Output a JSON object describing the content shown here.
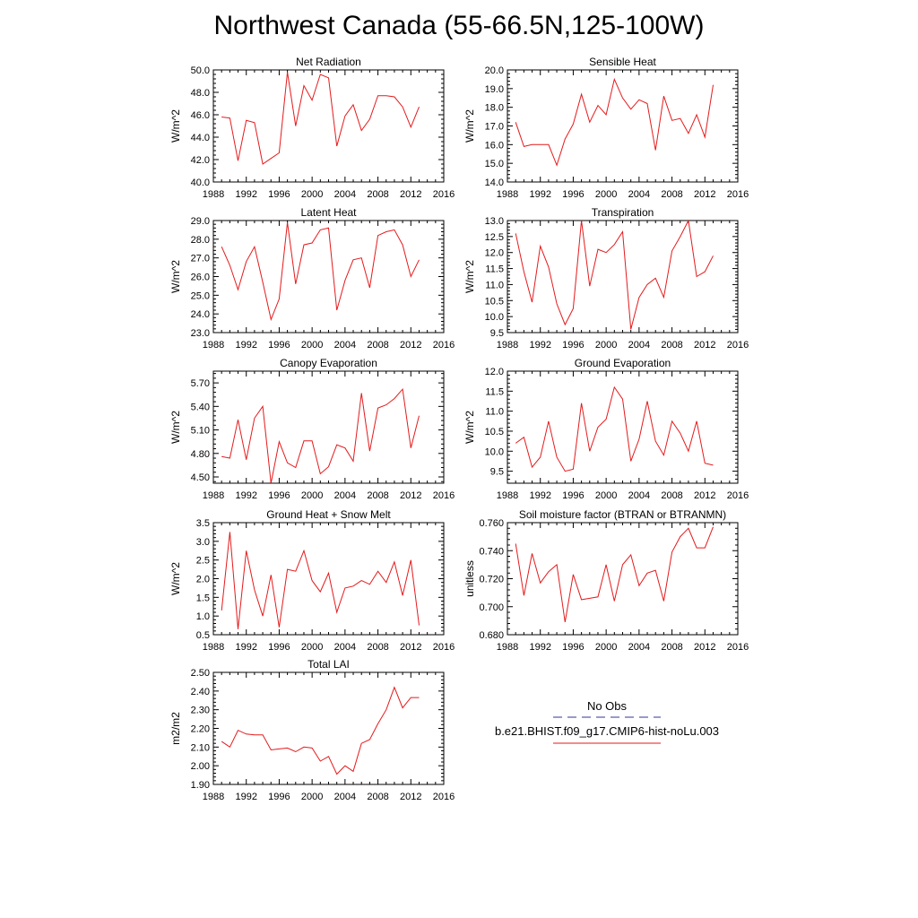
{
  "title": "Northwest Canada (55-66.5N,125-100W)",
  "legend": {
    "entries": [
      {
        "label": "No Obs",
        "color": "#333399",
        "dash": true
      },
      {
        "label": "b.e21.BHIST.f09_g17.CMIP6-hist-noLu.003",
        "color": "#e41a1c",
        "dash": false
      }
    ]
  },
  "chart_data": [
    {
      "type": "line",
      "title": "Net Radiation",
      "ylabel": "W/m^2",
      "xlim": [
        1988,
        2016
      ],
      "ylim": [
        40,
        50
      ],
      "xticks": [
        1988,
        1992,
        1996,
        2000,
        2004,
        2008,
        2012,
        2016
      ],
      "yticks": [
        40,
        42,
        44,
        46,
        48,
        50
      ],
      "ytick_labels": [
        "40.0",
        "42.0",
        "44.0",
        "46.0",
        "48.0",
        "50.0"
      ],
      "xtick_labels": [
        "1988",
        "1992",
        "1996",
        "2000",
        "2004",
        "2008",
        "2012",
        "2016"
      ],
      "x": [
        1989,
        1990,
        1991,
        1992,
        1993,
        1994,
        1995,
        1996,
        1997,
        1998,
        1999,
        2000,
        2001,
        2002,
        2003,
        2004,
        2005,
        2006,
        2007,
        2008,
        2009,
        2010,
        2011,
        2012,
        2013
      ],
      "series": [
        {
          "color": "#e41a1c",
          "values": [
            45.8,
            45.7,
            41.9,
            45.5,
            45.3,
            41.6,
            42.1,
            42.6,
            49.8,
            45.0,
            48.6,
            47.3,
            49.6,
            49.3,
            43.2,
            45.9,
            46.9,
            44.6,
            45.6,
            47.7,
            47.7,
            47.6,
            46.7,
            44.9,
            46.7
          ]
        }
      ]
    },
    {
      "type": "line",
      "title": "Sensible Heat",
      "ylabel": "W/m^2",
      "xlim": [
        1988,
        2016
      ],
      "ylim": [
        14,
        20
      ],
      "xticks": [
        1988,
        1992,
        1996,
        2000,
        2004,
        2008,
        2012,
        2016
      ],
      "yticks": [
        14,
        15,
        16,
        17,
        18,
        19,
        20
      ],
      "ytick_labels": [
        "14.0",
        "15.0",
        "16.0",
        "17.0",
        "18.0",
        "19.0",
        "20.0"
      ],
      "xtick_labels": [
        "1988",
        "1992",
        "1996",
        "2000",
        "2004",
        "2008",
        "2012",
        "2016"
      ],
      "x": [
        1989,
        1990,
        1991,
        1992,
        1993,
        1994,
        1995,
        1996,
        1997,
        1998,
        1999,
        2000,
        2001,
        2002,
        2003,
        2004,
        2005,
        2006,
        2007,
        2008,
        2009,
        2010,
        2011,
        2012,
        2013
      ],
      "series": [
        {
          "color": "#e41a1c",
          "values": [
            17.2,
            15.9,
            16.0,
            16.0,
            16.0,
            14.9,
            16.3,
            17.1,
            18.7,
            17.2,
            18.1,
            17.6,
            19.5,
            18.5,
            17.9,
            18.4,
            18.2,
            15.7,
            18.6,
            17.3,
            17.4,
            16.6,
            17.6,
            16.4,
            19.2
          ]
        }
      ]
    },
    {
      "type": "line",
      "title": "Latent Heat",
      "ylabel": "W/m^2",
      "xlim": [
        1988,
        2016
      ],
      "ylim": [
        23,
        29
      ],
      "xticks": [
        1988,
        1992,
        1996,
        2000,
        2004,
        2008,
        2012,
        2016
      ],
      "yticks": [
        23,
        24,
        25,
        26,
        27,
        28,
        29
      ],
      "ytick_labels": [
        "23.0",
        "24.0",
        "25.0",
        "26.0",
        "27.0",
        "28.0",
        "29.0"
      ],
      "xtick_labels": [
        "1988",
        "1992",
        "1996",
        "2000",
        "2004",
        "2008",
        "2012",
        "2016"
      ],
      "x": [
        1989,
        1990,
        1991,
        1992,
        1993,
        1994,
        1995,
        1996,
        1997,
        1998,
        1999,
        2000,
        2001,
        2002,
        2003,
        2004,
        2005,
        2006,
        2007,
        2008,
        2009,
        2010,
        2011,
        2012,
        2013
      ],
      "series": [
        {
          "color": "#e41a1c",
          "values": [
            27.6,
            26.6,
            25.3,
            26.8,
            27.6,
            25.7,
            23.7,
            24.8,
            28.9,
            25.6,
            27.7,
            27.8,
            28.5,
            28.6,
            24.2,
            25.8,
            26.9,
            27.0,
            25.4,
            28.2,
            28.4,
            28.5,
            27.7,
            26.0,
            26.9
          ]
        }
      ]
    },
    {
      "type": "line",
      "title": "Transpiration",
      "ylabel": "W/m^2",
      "xlim": [
        1988,
        2016
      ],
      "ylim": [
        9.5,
        13
      ],
      "xticks": [
        1988,
        1992,
        1996,
        2000,
        2004,
        2008,
        2012,
        2016
      ],
      "yticks": [
        9.5,
        10,
        10.5,
        11,
        11.5,
        12,
        12.5,
        13
      ],
      "ytick_labels": [
        "9.5",
        "10.0",
        "10.5",
        "11.0",
        "11.5",
        "12.0",
        "12.5",
        "13.0"
      ],
      "xtick_labels": [
        "1988",
        "1992",
        "1996",
        "2000",
        "2004",
        "2008",
        "2012",
        "2016"
      ],
      "x": [
        1989,
        1990,
        1991,
        1992,
        1993,
        1994,
        1995,
        1996,
        1997,
        1998,
        1999,
        2000,
        2001,
        2002,
        2003,
        2004,
        2005,
        2006,
        2007,
        2008,
        2009,
        2010,
        2011,
        2012,
        2013
      ],
      "series": [
        {
          "color": "#e41a1c",
          "values": [
            12.6,
            11.4,
            10.45,
            12.2,
            11.55,
            10.4,
            9.75,
            10.25,
            13.0,
            10.95,
            12.1,
            12.0,
            12.25,
            12.65,
            9.6,
            10.6,
            11.0,
            11.2,
            10.6,
            12.05,
            12.5,
            13.0,
            11.25,
            11.4,
            11.9
          ]
        }
      ]
    },
    {
      "type": "line",
      "title": "Canopy Evaporation",
      "ylabel": "W/m^2",
      "xlim": [
        1988,
        2016
      ],
      "ylim": [
        4.42,
        5.85
      ],
      "xticks": [
        1988,
        1992,
        1996,
        2000,
        2004,
        2008,
        2012,
        2016
      ],
      "yticks": [
        4.5,
        4.8,
        5.1,
        5.4,
        5.7
      ],
      "ytick_labels": [
        "4.50",
        "4.80",
        "5.10",
        "5.40",
        "5.70"
      ],
      "xtick_labels": [
        "1988",
        "1992",
        "1996",
        "2000",
        "2004",
        "2008",
        "2012",
        "2016"
      ],
      "x": [
        1989,
        1990,
        1991,
        1992,
        1993,
        1994,
        1995,
        1996,
        1997,
        1998,
        1999,
        2000,
        2001,
        2002,
        2003,
        2004,
        2005,
        2006,
        2007,
        2008,
        2009,
        2010,
        2011,
        2012,
        2013
      ],
      "series": [
        {
          "color": "#e41a1c",
          "values": [
            4.76,
            4.74,
            5.23,
            4.72,
            5.25,
            5.4,
            4.42,
            4.95,
            4.68,
            4.62,
            4.96,
            4.96,
            4.54,
            4.63,
            4.91,
            4.87,
            4.7,
            5.57,
            4.83,
            5.38,
            5.42,
            5.5,
            5.62,
            4.87,
            5.28
          ]
        }
      ]
    },
    {
      "type": "line",
      "title": "Ground Evaporation",
      "ylabel": "W/m^2",
      "xlim": [
        1988,
        2016
      ],
      "ylim": [
        9.2,
        12
      ],
      "xticks": [
        1988,
        1992,
        1996,
        2000,
        2004,
        2008,
        2012,
        2016
      ],
      "yticks": [
        9.5,
        10,
        10.5,
        11,
        11.5,
        12
      ],
      "ytick_labels": [
        "9.5",
        "10.0",
        "10.5",
        "11.0",
        "11.5",
        "12.0"
      ],
      "xtick_labels": [
        "1988",
        "1992",
        "1996",
        "2000",
        "2004",
        "2008",
        "2012",
        "2016"
      ],
      "x": [
        1989,
        1990,
        1991,
        1992,
        1993,
        1994,
        1995,
        1996,
        1997,
        1998,
        1999,
        2000,
        2001,
        2002,
        2003,
        2004,
        2005,
        2006,
        2007,
        2008,
        2009,
        2010,
        2011,
        2012,
        2013
      ],
      "series": [
        {
          "color": "#e41a1c",
          "values": [
            10.2,
            10.35,
            9.6,
            9.85,
            10.75,
            9.85,
            9.5,
            9.55,
            11.2,
            10.0,
            10.6,
            10.8,
            11.6,
            11.3,
            9.75,
            10.3,
            11.25,
            10.25,
            9.9,
            10.75,
            10.45,
            10.0,
            10.75,
            9.7,
            9.65
          ]
        }
      ]
    },
    {
      "type": "line",
      "title": "Ground Heat + Snow Melt",
      "ylabel": "W/m^2",
      "xlim": [
        1988,
        2016
      ],
      "ylim": [
        0.5,
        3.5
      ],
      "xticks": [
        1988,
        1992,
        1996,
        2000,
        2004,
        2008,
        2012,
        2016
      ],
      "yticks": [
        0.5,
        1,
        1.5,
        2,
        2.5,
        3,
        3.5
      ],
      "ytick_labels": [
        "0.5",
        "1.0",
        "1.5",
        "2.0",
        "2.5",
        "3.0",
        "3.5"
      ],
      "xtick_labels": [
        "1988",
        "1992",
        "1996",
        "2000",
        "2004",
        "2008",
        "2012",
        "2016"
      ],
      "x": [
        1989,
        1990,
        1991,
        1992,
        1993,
        1994,
        1995,
        1996,
        1997,
        1998,
        1999,
        2000,
        2001,
        2002,
        2003,
        2004,
        2005,
        2006,
        2007,
        2008,
        2009,
        2010,
        2011,
        2012,
        2013
      ],
      "series": [
        {
          "color": "#e41a1c",
          "values": [
            1.15,
            3.25,
            0.65,
            2.75,
            1.7,
            1.0,
            2.1,
            0.7,
            2.25,
            2.2,
            2.75,
            1.95,
            1.65,
            2.15,
            1.1,
            1.75,
            1.8,
            1.95,
            1.85,
            2.2,
            1.9,
            2.45,
            1.55,
            2.5,
            0.75
          ]
        }
      ]
    },
    {
      "type": "line",
      "title": "Soil moisture factor (BTRAN or BTRANMN)",
      "ylabel": "unitless",
      "xlim": [
        1988,
        2016
      ],
      "ylim": [
        0.68,
        0.76
      ],
      "xticks": [
        1988,
        1992,
        1996,
        2000,
        2004,
        2008,
        2012,
        2016
      ],
      "yticks": [
        0.68,
        0.7,
        0.72,
        0.74,
        0.76
      ],
      "ytick_labels": [
        "0.680",
        "0.700",
        "0.720",
        "0.740",
        "0.760"
      ],
      "xtick_labels": [
        "1988",
        "1992",
        "1996",
        "2000",
        "2004",
        "2008",
        "2012",
        "2016"
      ],
      "x": [
        1989,
        1990,
        1991,
        1992,
        1993,
        1994,
        1995,
        1996,
        1997,
        1998,
        1999,
        2000,
        2001,
        2002,
        2003,
        2004,
        2005,
        2006,
        2007,
        2008,
        2009,
        2010,
        2011,
        2012,
        2013
      ],
      "series": [
        {
          "color": "#e41a1c",
          "values": [
            0.745,
            0.708,
            0.738,
            0.717,
            0.725,
            0.73,
            0.689,
            0.723,
            0.705,
            0.706,
            0.707,
            0.73,
            0.704,
            0.73,
            0.737,
            0.715,
            0.724,
            0.726,
            0.704,
            0.739,
            0.75,
            0.756,
            0.742,
            0.742,
            0.757
          ]
        }
      ]
    },
    {
      "type": "line",
      "title": "Total LAI",
      "ylabel": "m2/m2",
      "xlim": [
        1988,
        2016
      ],
      "ylim": [
        1.9,
        2.5
      ],
      "xticks": [
        1988,
        1992,
        1996,
        2000,
        2004,
        2008,
        2012,
        2016
      ],
      "yticks": [
        1.9,
        2,
        2.1,
        2.2,
        2.3,
        2.4,
        2.5
      ],
      "ytick_labels": [
        "1.90",
        "2.00",
        "2.10",
        "2.20",
        "2.30",
        "2.40",
        "2.50"
      ],
      "xtick_labels": [
        "1988",
        "1992",
        "1996",
        "2000",
        "2004",
        "2008",
        "2012",
        "2016"
      ],
      "x": [
        1989,
        1990,
        1991,
        1992,
        1993,
        1994,
        1995,
        1996,
        1997,
        1998,
        1999,
        2000,
        2001,
        2002,
        2003,
        2004,
        2005,
        2006,
        2007,
        2008,
        2009,
        2010,
        2011,
        2012,
        2013
      ],
      "series": [
        {
          "color": "#e41a1c",
          "values": [
            2.13,
            2.1,
            2.19,
            2.17,
            2.165,
            2.165,
            2.085,
            2.09,
            2.095,
            2.075,
            2.1,
            2.095,
            2.025,
            2.05,
            1.955,
            2.0,
            1.97,
            2.12,
            2.14,
            2.225,
            2.3,
            2.42,
            2.31,
            2.365,
            2.365
          ]
        }
      ]
    }
  ]
}
